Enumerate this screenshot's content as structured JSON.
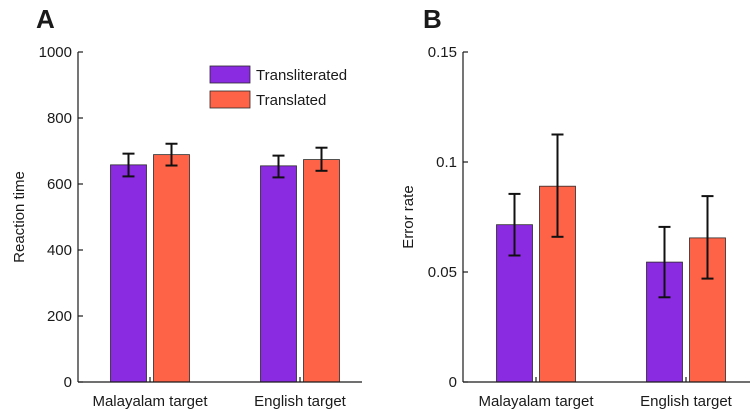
{
  "colors": {
    "Transliterated": "#8a2be2",
    "Translated": "#ff6347",
    "axis": "#1a1a1a"
  },
  "chart_data": [
    {
      "type": "bar",
      "panel_label": "A",
      "categories": [
        "Malayalam target",
        "English target"
      ],
      "series": [
        {
          "name": "Transliterated",
          "values": [
            658,
            655
          ],
          "error_low": [
            623,
            620
          ],
          "error_high": [
            692,
            686
          ]
        },
        {
          "name": "Translated",
          "values": [
            689,
            674
          ],
          "error_low": [
            656,
            640
          ],
          "error_high": [
            722,
            710
          ]
        }
      ],
      "xlabel": "",
      "ylabel": "Reaction time",
      "ylim": [
        0,
        1000
      ],
      "yticks": [
        "0",
        "200",
        "400",
        "600",
        "800",
        "1000"
      ],
      "ytick_values": [
        0,
        200,
        400,
        600,
        800,
        1000
      ],
      "legend": {
        "entries": [
          "Transliterated",
          "Translated"
        ],
        "placement": "top-right"
      },
      "grid": false
    },
    {
      "type": "bar",
      "panel_label": "B",
      "categories": [
        "Malayalam target",
        "English target"
      ],
      "series": [
        {
          "name": "Transliterated",
          "values": [
            0.0715,
            0.0545
          ],
          "error_low": [
            0.0575,
            0.0385
          ],
          "error_high": [
            0.0855,
            0.0705
          ]
        },
        {
          "name": "Translated",
          "values": [
            0.089,
            0.0655
          ],
          "error_low": [
            0.066,
            0.047
          ],
          "error_high": [
            0.1125,
            0.0845
          ]
        }
      ],
      "xlabel": "",
      "ylabel": "Error rate",
      "ylim": [
        0,
        0.15
      ],
      "yticks": [
        "0",
        "0.05",
        "0.1",
        "0.15"
      ],
      "ytick_values": [
        0,
        0.05,
        0.1,
        0.15
      ],
      "grid": false
    }
  ]
}
